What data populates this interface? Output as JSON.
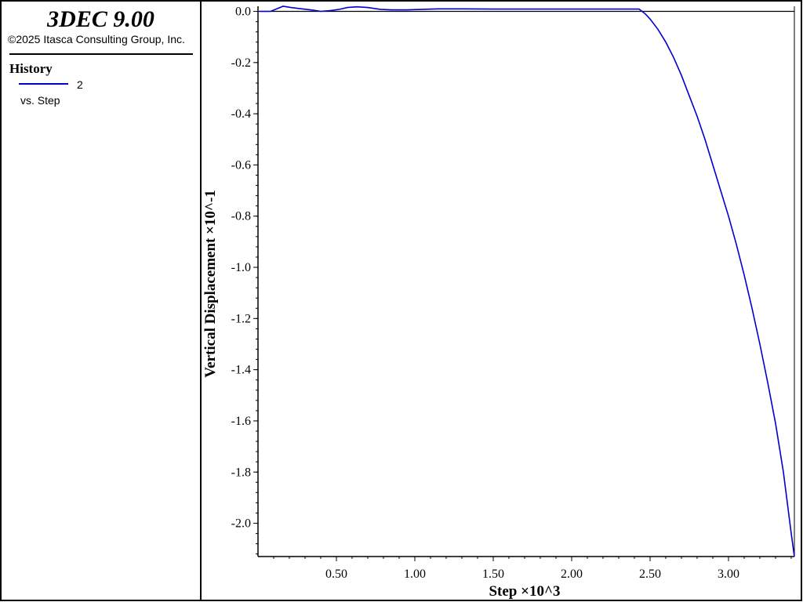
{
  "app": {
    "title": "3DEC 9.00",
    "copyright": "©2025 Itasca Consulting Group, Inc."
  },
  "legend": {
    "heading": "History",
    "entries": [
      {
        "id": "2",
        "vs_label": "vs. Step",
        "color": "#0000d0"
      }
    ]
  },
  "chart_data": {
    "type": "line",
    "xlabel": "Step ×10^3",
    "ylabel": "Vertical Displacement ×10^-1",
    "xlim": [
      0.0,
      3.42
    ],
    "ylim": [
      -2.13,
      0.02
    ],
    "xticks": [
      0.5,
      1.0,
      1.5,
      2.0,
      2.5,
      3.0
    ],
    "xtick_labels": [
      "0.50",
      "1.00",
      "1.50",
      "2.00",
      "2.50",
      "3.00"
    ],
    "yticks": [
      0.0,
      -0.2,
      -0.4,
      -0.6,
      -0.8,
      -1.0,
      -1.2,
      -1.4,
      -1.6,
      -1.8,
      -2.0
    ],
    "ytick_labels": [
      "0.0",
      "-0.2",
      "-0.4",
      "-0.6",
      "-0.8",
      "-1.0",
      "-1.2",
      "-1.4",
      "-1.6",
      "-1.8",
      "-2.0"
    ],
    "zero_line": true,
    "grid": false,
    "series": [
      {
        "color": "#0000d0",
        "x": [
          0.01,
          0.08,
          0.12,
          0.16,
          0.21,
          0.28,
          0.35,
          0.4,
          0.46,
          0.52,
          0.57,
          0.63,
          0.7,
          0.78,
          0.85,
          0.95,
          1.05,
          1.15,
          1.3,
          1.5,
          1.7,
          1.9,
          2.1,
          2.3,
          2.43,
          2.47,
          2.5,
          2.55,
          2.6,
          2.65,
          2.7,
          2.75,
          2.8,
          2.85,
          2.9,
          2.95,
          3.0,
          3.05,
          3.1,
          3.15,
          3.2,
          3.25,
          3.3,
          3.35,
          3.4,
          3.42
        ],
        "y": [
          0.0,
          0.0,
          0.01,
          0.02,
          0.015,
          0.01,
          0.005,
          0.0,
          0.003,
          0.008,
          0.015,
          0.018,
          0.015,
          0.008,
          0.006,
          0.006,
          0.008,
          0.01,
          0.01,
          0.009,
          0.009,
          0.009,
          0.009,
          0.009,
          0.009,
          -0.01,
          -0.03,
          -0.07,
          -0.12,
          -0.18,
          -0.25,
          -0.33,
          -0.41,
          -0.5,
          -0.6,
          -0.7,
          -0.8,
          -0.91,
          -1.03,
          -1.16,
          -1.3,
          -1.45,
          -1.61,
          -1.8,
          -2.04,
          -2.13
        ]
      }
    ]
  }
}
